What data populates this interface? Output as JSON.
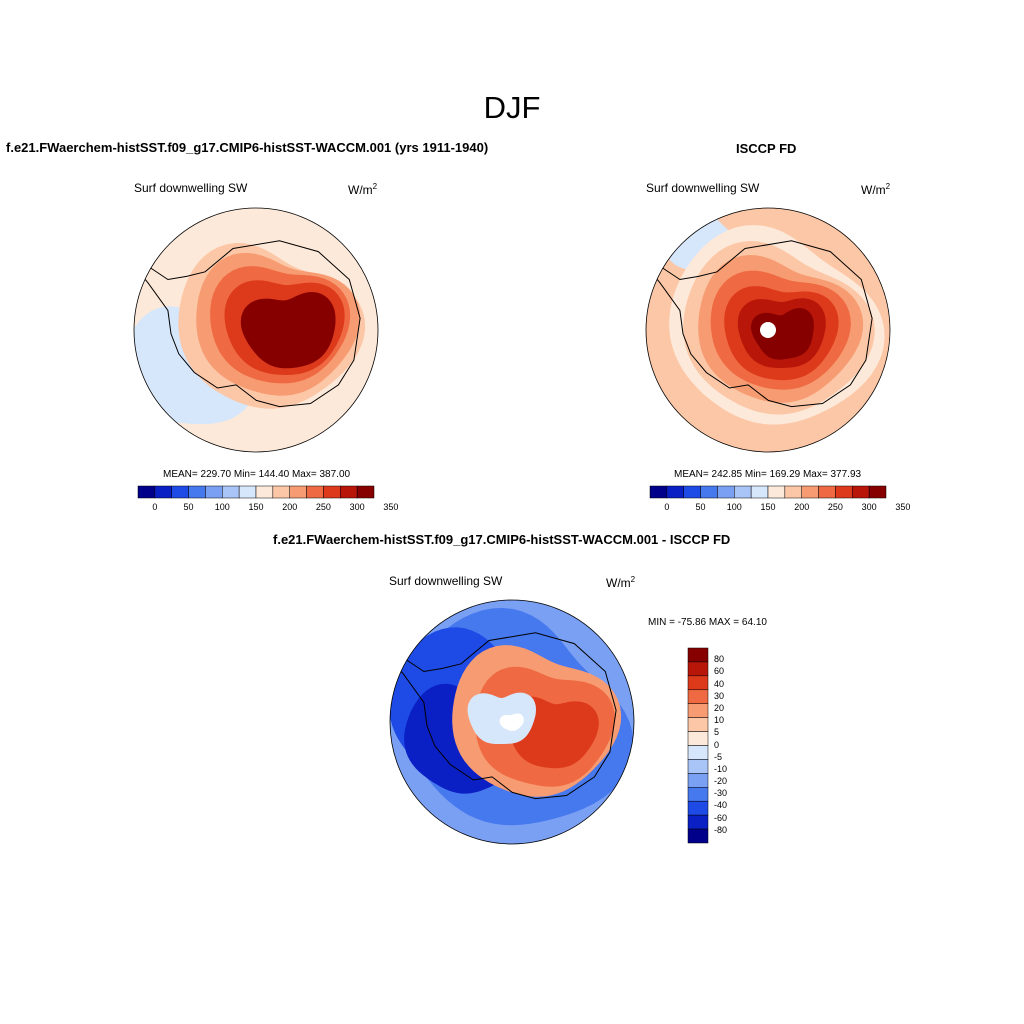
{
  "season": "DJF",
  "palette": [
    "#00008b",
    "#0a1fc4",
    "#1e4be6",
    "#4678ee",
    "#7aa0f3",
    "#a9c4f7",
    "#d6e6fb",
    "#fde9d9",
    "#fcc7a6",
    "#f79c72",
    "#ef6a42",
    "#dd3a1c",
    "#b9160a",
    "#870000"
  ],
  "coastline_color": "#000000",
  "panels": {
    "model": {
      "title": "f.e21.FWaerchem-histSST.f09_g17.CMIP6-histSST-WACCM.001 (yrs 1911-1940)",
      "variable": "Surf downwelling SW",
      "units_base": "W/m",
      "units_exp": "2",
      "stats": "MEAN= 229.70  Min= 144.40  Max= 387.00",
      "colorbar_ticks": [
        "0",
        "50",
        "100",
        "150",
        "200",
        "250",
        "300",
        "350"
      ]
    },
    "obs": {
      "title": "ISCCP FD",
      "variable": "Surf downwelling SW",
      "units_base": "W/m",
      "units_exp": "2",
      "stats": "MEAN= 242.85  Min= 169.29  Max= 377.93",
      "colorbar_ticks": [
        "0",
        "50",
        "100",
        "150",
        "200",
        "250",
        "300",
        "350"
      ]
    },
    "diff": {
      "title": "f.e21.FWaerchem-histSST.f09_g17.CMIP6-histSST-WACCM.001 - ISCCP FD",
      "variable": "Surf downwelling SW",
      "units_base": "W/m",
      "units_exp": "2",
      "stats": "MIN = -75.86 MAX =  64.10",
      "colorbar_labels": [
        "80",
        "60",
        "40",
        "30",
        "20",
        "10",
        "5",
        "0",
        "-5",
        "-10",
        "-20",
        "-30",
        "-40",
        "-60",
        "-80"
      ]
    }
  }
}
